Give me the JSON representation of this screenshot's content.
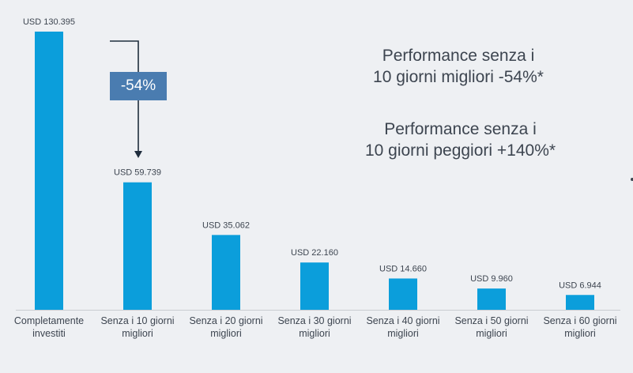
{
  "chart_data": {
    "type": "bar",
    "categories": [
      "Completamente\ninvestiti",
      "Senza i 10 giorni\nmigliori",
      "Senza i 20 giorni\nmigliori",
      "Senza i 30 giorni\nmigliori",
      "Senza i 40 giorni\nmigliori",
      "Senza i 50 giorni\nmigliori",
      "Senza i 60 giorni\nmigliori"
    ],
    "values": [
      130395,
      59739,
      35062,
      22160,
      14660,
      9960,
      6944
    ],
    "data_labels": [
      "USD 130.395",
      "USD 59.739",
      "USD 35.062",
      "USD 22.160",
      "USD 14.660",
      "USD 9.960",
      "USD 6.944"
    ],
    "ylim": [
      0,
      130395
    ],
    "grid": false,
    "bar_color": "#0b9edb",
    "title": "",
    "xlabel": "",
    "ylabel": ""
  },
  "annotations": {
    "drop_badge": "-54%",
    "note_best": "Performance senza i\n10 giorni migliori -54%*",
    "note_worst": "Performance senza i\n10 giorni peggiori +140%*"
  },
  "colors": {
    "background": "#eef0f3",
    "badge": "#4a7cb0",
    "arrow": "#1f2d3d",
    "text": "#3d4550"
  }
}
